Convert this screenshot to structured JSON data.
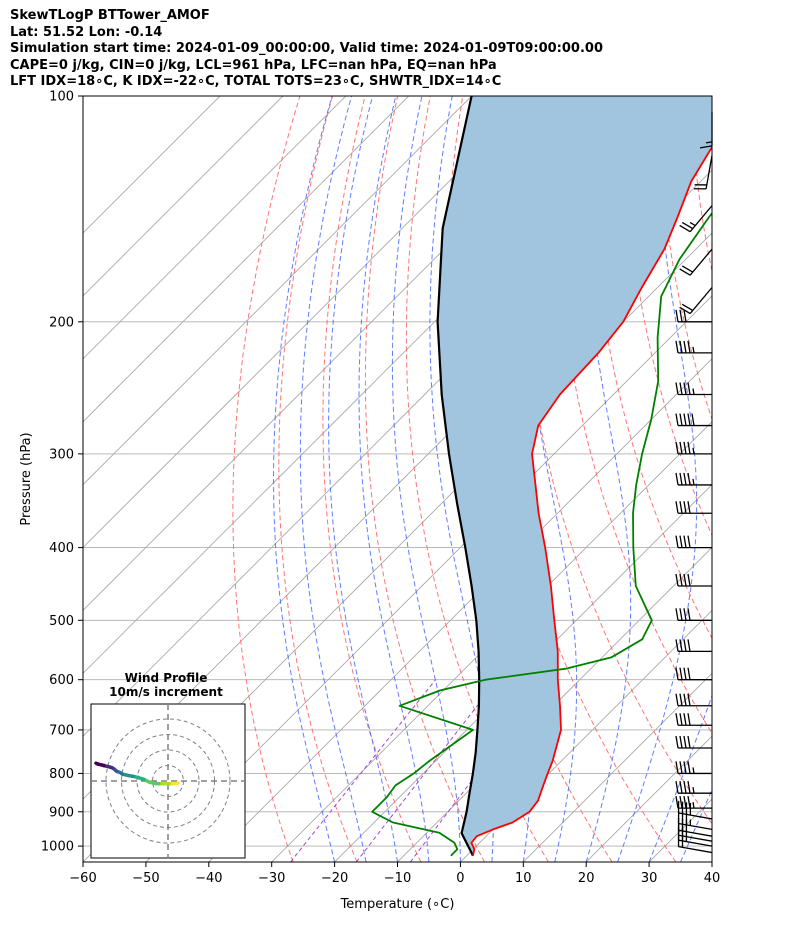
{
  "header": {
    "lines": [
      "SkewTLogP BTTower_AMOF",
      "Lat: 51.52   Lon: -0.14",
      "Simulation start time: 2024-01-09_00:00:00, Valid time: 2024-01-09T09:00:00.00",
      "CAPE=0 j/kg, CIN=0 j/kg, LCL=961 hPa, LFC=nan hPa, EQ=nan hPa",
      "LFT IDX=18∘C, K IDX=-22∘C, TOTAL TOTS=23∘C, SHWTR_IDX=14∘C"
    ]
  },
  "chart_data": [
    {
      "type": "line",
      "subtype": "skew-t log-p",
      "xlabel": "Temperature (∘C)",
      "ylabel": "Pressure (hPa)",
      "xlim": [
        -60,
        40
      ],
      "ylim": [
        1050,
        100
      ],
      "y_scale": "log",
      "x_ticks": [
        -60,
        -50,
        -40,
        -30,
        -20,
        -10,
        0,
        10,
        20,
        30,
        40
      ],
      "y_ticks": [
        100,
        200,
        300,
        400,
        500,
        600,
        700,
        800,
        900,
        1000
      ],
      "grid": true,
      "colors": {
        "temperature": "#ff0000",
        "dewpoint": "#008000",
        "parcel": "#000000",
        "shading": "#a2c5df",
        "dry_adiabats": "#ff6666",
        "moist_adiabats": "#4466ff",
        "mixing_ratio": "#aa44cc",
        "isotherms": "#aaaaaa"
      },
      "series": [
        {
          "key": "temperature",
          "p": [
            1030,
            1010,
            990,
            970,
            950,
            930,
            900,
            870,
            850,
            830,
            800,
            770,
            700,
            650,
            600,
            550,
            500,
            450,
            400,
            360,
            330,
            300,
            275,
            250,
            220,
            200,
            180,
            160,
            145,
            130,
            115,
            100
          ],
          "t": [
            1.0,
            0.2,
            -1.3,
            -1.5,
            0.0,
            2.0,
            3.0,
            2.6,
            1.8,
            1.0,
            -0.2,
            -1.4,
            -5.0,
            -9.0,
            -13.5,
            -18.0,
            -23.5,
            -29.5,
            -36.5,
            -43.0,
            -48.0,
            -53.5,
            -57.0,
            -58.5,
            -59.0,
            -60.0,
            -62.5,
            -65.0,
            -68.0,
            -71.5,
            -74.0,
            -77.5
          ]
        },
        {
          "key": "dewpoint",
          "p": [
            1030,
            1010,
            990,
            960,
            930,
            900,
            860,
            830,
            800,
            770,
            700,
            650,
            620,
            600,
            580,
            560,
            530,
            500,
            450,
            400,
            360,
            330,
            300,
            270,
            240,
            210,
            185,
            165,
            145,
            120,
            100
          ],
          "t": [
            -2.5,
            -2.5,
            -4.0,
            -8.0,
            -17.0,
            -22.0,
            -22.0,
            -22.5,
            -21.5,
            -21.0,
            -19.0,
            -34.5,
            -30.5,
            -25.0,
            -14.0,
            -8.5,
            -6.5,
            -8.0,
            -16.0,
            -22.5,
            -28.0,
            -32.0,
            -36.0,
            -40.0,
            -45.0,
            -52.0,
            -58.0,
            -61.0,
            -63.0,
            -65.0,
            -67.0
          ]
        },
        {
          "key": "parcel",
          "p": [
            1030,
            961,
            900,
            850,
            800,
            750,
            700,
            650,
            600,
            550,
            500,
            450,
            400,
            350,
            300,
            250,
            200,
            150,
            100
          ],
          "t": [
            1.0,
            -4.4,
            -7.0,
            -9.5,
            -12.1,
            -15.0,
            -18.3,
            -21.9,
            -26.0,
            -30.6,
            -35.9,
            -42.1,
            -49.2,
            -57.4,
            -66.7,
            -77.3,
            -89.5,
            -103.6,
            -120.0
          ]
        }
      ]
    },
    {
      "type": "scatter",
      "subtype": "hodograph",
      "title": "Wind Profile",
      "subtitle": "10m/s increment",
      "ring_increment_ms": 10,
      "ring_count": 4,
      "u": [
        13.0,
        10.0,
        7.5,
        5.0,
        3.0,
        0.5,
        -2.0,
        -5.5,
        -9.0,
        -13.0,
        -16.0,
        -19.0,
        -21.0,
        -23.0,
        -24.5,
        -26.0,
        -27.0,
        -28.0,
        -29.5,
        -31.0,
        -33.0,
        -35.0,
        -37.0,
        -39.0,
        -40.0
      ],
      "v": [
        -1.3,
        -1.8,
        -1.8,
        -1.8,
        -1.8,
        -1.8,
        -1.5,
        -0.8,
        1.0,
        2.3,
        3.0,
        3.5,
        4.0,
        4.5,
        5.5,
        6.0,
        6.5,
        7.5,
        8.5,
        9.0,
        9.5,
        10.0,
        10.5,
        11.0,
        11.5
      ]
    },
    {
      "type": "wind_barbs",
      "units": "knots",
      "p": [
        1020,
        1000,
        985,
        970,
        950,
        920,
        890,
        850,
        800,
        740,
        690,
        650,
        600,
        550,
        500,
        450,
        400,
        360,
        330,
        300,
        275,
        250,
        220,
        200,
        180,
        160,
        140,
        120,
        105
      ],
      "speed": [
        20,
        25,
        25,
        30,
        35,
        40,
        45,
        45,
        45,
        40,
        40,
        40,
        40,
        40,
        40,
        40,
        40,
        40,
        45,
        45,
        50,
        45,
        45,
        30,
        20,
        20,
        25,
        20,
        15
      ],
      "direction": [
        280,
        280,
        280,
        280,
        280,
        280,
        270,
        270,
        270,
        270,
        270,
        270,
        270,
        270,
        270,
        270,
        270,
        270,
        270,
        270,
        270,
        270,
        270,
        270,
        220,
        220,
        220,
        190,
        180
      ]
    }
  ]
}
